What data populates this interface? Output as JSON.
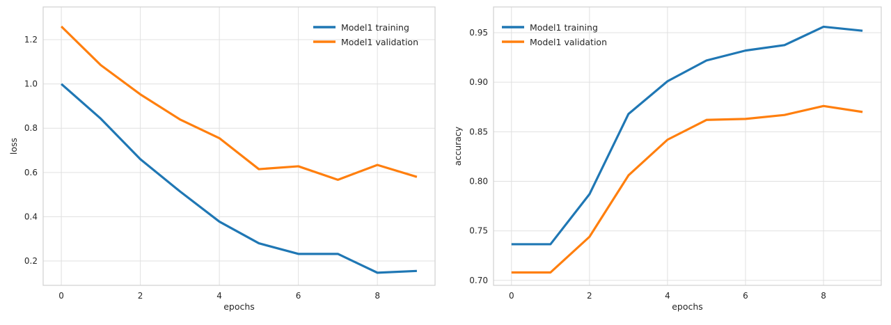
{
  "chart_data": [
    {
      "type": "line",
      "xlabel": "epochs",
      "ylabel": "loss",
      "x": [
        0,
        1,
        2,
        3,
        4,
        5,
        6,
        7,
        8,
        9
      ],
      "xlim": [
        -0.46,
        9.46
      ],
      "ylim": [
        0.09,
        1.348
      ],
      "xticks": [
        0,
        2,
        4,
        6,
        8
      ],
      "yticks": [
        0.2,
        0.4,
        0.6,
        0.8,
        1.0,
        1.2
      ],
      "ytick_labels": [
        "0.2",
        "0.4",
        "0.6",
        "0.8",
        "1.0",
        "1.2"
      ],
      "grid": true,
      "legend_position": "top-right",
      "series": [
        {
          "name": "Model1 training",
          "color": "#1f77b4",
          "values": [
            1.0,
            0.843,
            0.66,
            0.515,
            0.378,
            0.28,
            0.232,
            0.232,
            0.147,
            0.155
          ]
        },
        {
          "name": "Model1 validation",
          "color": "#ff7f0e",
          "values": [
            1.26,
            1.085,
            0.953,
            0.84,
            0.755,
            0.615,
            0.628,
            0.567,
            0.634,
            0.58
          ]
        }
      ]
    },
    {
      "type": "line",
      "xlabel": "epochs",
      "ylabel": "accuracy",
      "x": [
        0,
        1,
        2,
        3,
        4,
        5,
        6,
        7,
        8,
        9
      ],
      "xlim": [
        -0.46,
        9.48
      ],
      "ylim": [
        0.695,
        0.976
      ],
      "xticks": [
        0,
        2,
        4,
        6,
        8
      ],
      "yticks": [
        0.7,
        0.75,
        0.8,
        0.85,
        0.9,
        0.95
      ],
      "ytick_labels": [
        "0.70",
        "0.75",
        "0.80",
        "0.85",
        "0.90",
        "0.95"
      ],
      "grid": true,
      "legend_position": "top-left",
      "series": [
        {
          "name": "Model1 training",
          "color": "#1f77b4",
          "values": [
            0.7365,
            0.7365,
            0.787,
            0.868,
            0.901,
            0.922,
            0.932,
            0.9375,
            0.956,
            0.952
          ]
        },
        {
          "name": "Model1 validation",
          "color": "#ff7f0e",
          "values": [
            0.708,
            0.708,
            0.744,
            0.806,
            0.842,
            0.862,
            0.863,
            0.867,
            0.876,
            0.87
          ]
        }
      ]
    }
  ]
}
